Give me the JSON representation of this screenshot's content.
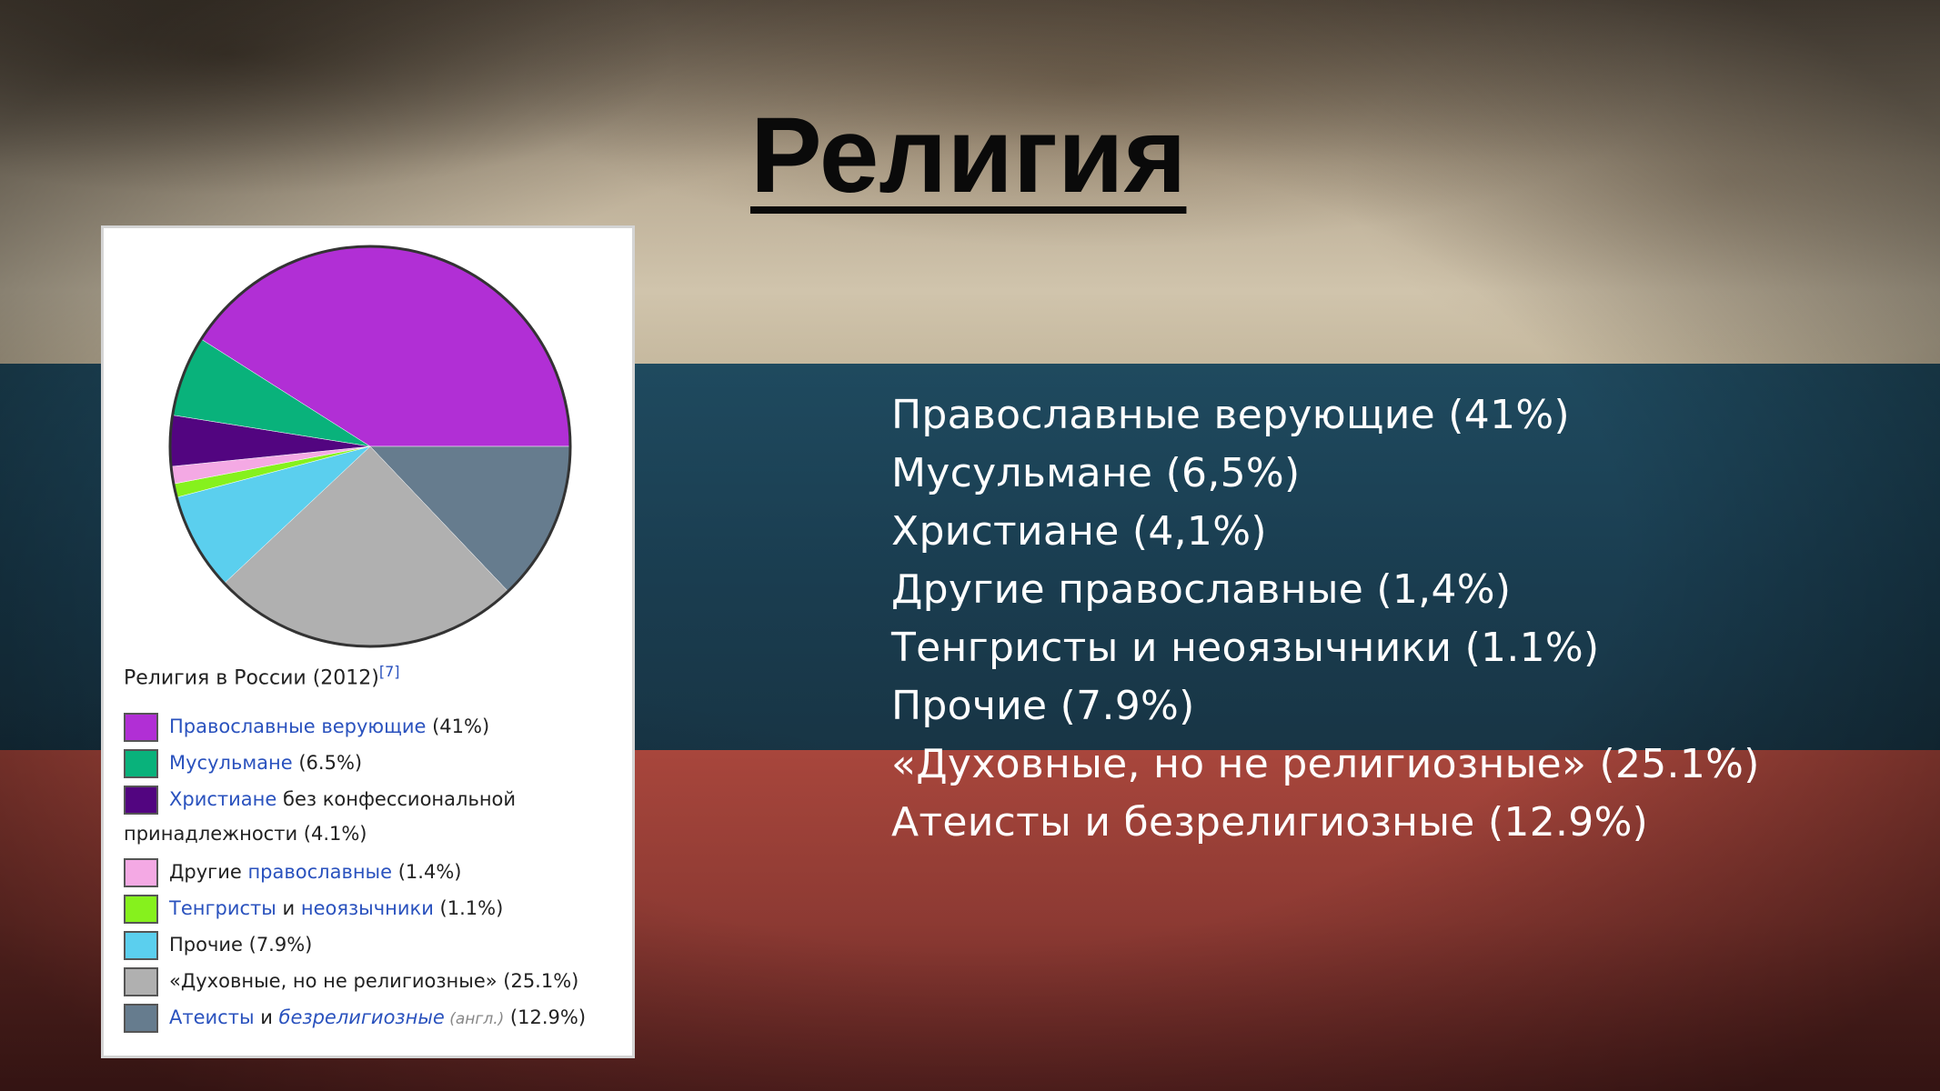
{
  "slide": {
    "title": "Религия"
  },
  "chart_data": {
    "type": "pie",
    "title": "Религия в России (2012)",
    "footnote": "[7]",
    "slices": [
      {
        "label": "Православные верующие",
        "value": 41,
        "color": "#b12fd5"
      },
      {
        "label": "Атеисты и безрелигиозные",
        "value": 12.9,
        "color": "#667c8e"
      },
      {
        "label": "«Духовные, но не религиозные»",
        "value": 25.1,
        "color": "#b0b0b0"
      },
      {
        "label": "Прочие",
        "value": 7.9,
        "color": "#5bcfee"
      },
      {
        "label": "Тенгристы и неоязычники",
        "value": 1.1,
        "color": "#86f11d"
      },
      {
        "label": "Другие православные",
        "value": 1.4,
        "color": "#f4a9e4"
      },
      {
        "label": "Христиане без конфессиональной принадлежности",
        "value": 4.1,
        "color": "#520580"
      },
      {
        "label": "Мусульмане",
        "value": 6.5,
        "color": "#09b27b"
      }
    ]
  },
  "legend": {
    "items": [
      {
        "color": "#b12fd5",
        "link": "Православные верующие",
        "rest": " (41%)"
      },
      {
        "color": "#09b27b",
        "link": "Мусульмане",
        "rest": " (6.5%)"
      },
      {
        "color": "#520580",
        "link": "Христиане",
        "rest": " без конфессиональной",
        "line2": "принадлежности (4.1%)"
      },
      {
        "color": "#f4a9e4",
        "pre": "Другие ",
        "link": "православные",
        "rest": " (1.4%)"
      },
      {
        "color": "#86f11d",
        "link": "Тенгристы",
        "mid": " и ",
        "link2": "неоязычники",
        "rest": " (1.1%)"
      },
      {
        "color": "#5bcfee",
        "pre": "Прочие (7.9%)"
      },
      {
        "color": "#b0b0b0",
        "pre": "«Духовные, но не религиозные» (25.1%)"
      },
      {
        "color": "#667c8e",
        "link": "Атеисты",
        "mid": " и ",
        "link2": "безрелигиозные",
        "muted": " (англ.)",
        "rest": " (12.9%)"
      }
    ]
  },
  "summary": {
    "items": [
      "Православные верующие (41%)",
      "Мусульмане (6,5%)",
      "Христиане (4,1%)",
      "Другие православные (1,4%)",
      "Тенгристы и неоязычники (1.1%)",
      "Прочие (7.9%)",
      "«Духовные, но не религиозные» (25.1%)",
      "Атеисты и безрелигиозные (12.9%)"
    ]
  }
}
